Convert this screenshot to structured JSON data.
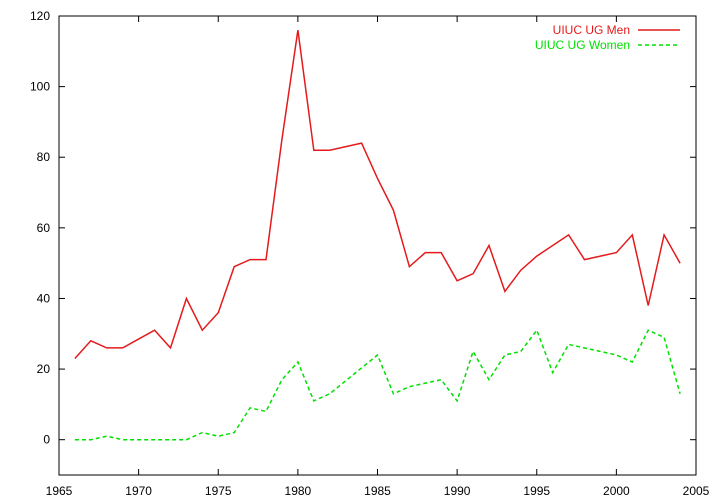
{
  "chart_data": {
    "type": "line",
    "title": "",
    "xlabel": "",
    "ylabel": "",
    "xlim": [
      1965,
      2005
    ],
    "ylim": [
      -10,
      120
    ],
    "xticks": [
      1965,
      1970,
      1975,
      1980,
      1985,
      1990,
      1995,
      2000,
      2005
    ],
    "yticks": [
      0,
      20,
      40,
      60,
      80,
      100,
      120
    ],
    "grid": false,
    "legend_position": "top-right",
    "series": [
      {
        "name": "UIUC UG Men",
        "color": "#e41a1c",
        "style": "solid",
        "x": [
          1966,
          1967,
          1968,
          1969,
          1971,
          1972,
          1973,
          1974,
          1975,
          1976,
          1977,
          1978,
          1979,
          1980,
          1981,
          1982,
          1984,
          1985,
          1986,
          1987,
          1988,
          1989,
          1990,
          1991,
          1992,
          1993,
          1994,
          1995,
          1997,
          1998,
          2000,
          2001,
          2002,
          2003,
          2004
        ],
        "y": [
          23,
          28,
          26,
          26,
          31,
          26,
          40,
          31,
          36,
          49,
          51,
          51,
          85,
          116,
          82,
          82,
          84,
          74,
          65,
          49,
          53,
          53,
          45,
          47,
          55,
          42,
          48,
          52,
          58,
          51,
          53,
          58,
          38,
          58,
          50
        ]
      },
      {
        "name": "UIUC UG Women",
        "color": "#00e000",
        "style": "dashed",
        "x": [
          1966,
          1967,
          1968,
          1969,
          1970,
          1971,
          1972,
          1973,
          1974,
          1975,
          1976,
          1977,
          1978,
          1979,
          1980,
          1981,
          1982,
          1985,
          1986,
          1987,
          1989,
          1990,
          1991,
          1992,
          1993,
          1994,
          1995,
          1996,
          1997,
          2000,
          2001,
          2002,
          2003,
          2004
        ],
        "y": [
          0,
          0,
          1,
          0,
          0,
          0,
          0,
          0,
          2,
          1,
          2,
          9,
          8,
          17,
          22,
          11,
          13,
          24,
          13,
          15,
          17,
          11,
          25,
          17,
          24,
          25,
          31,
          19,
          27,
          24,
          22,
          31,
          29,
          13
        ]
      }
    ]
  }
}
